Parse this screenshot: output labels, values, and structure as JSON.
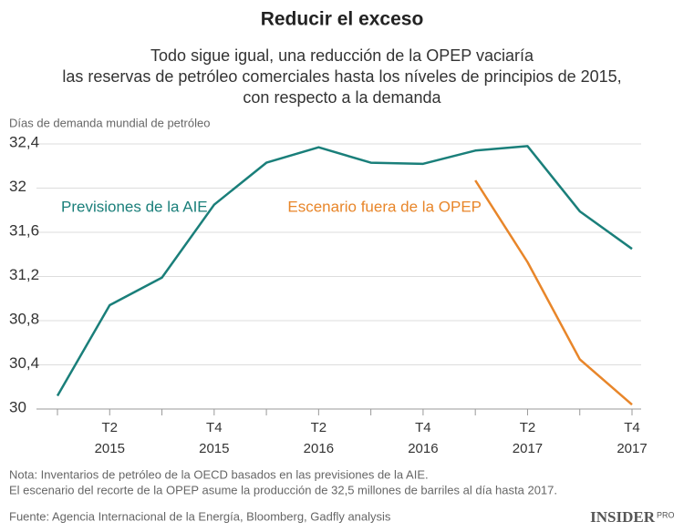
{
  "chart_data": {
    "type": "line",
    "title": "Reducir el exceso",
    "subtitle": [
      "Todo sigue igual, una reducción de la OPEP vaciaría",
      "las reservas de petróleo comerciales hasta los níveles de principios de 2015,",
      "con respecto a la demanda"
    ],
    "ylabel": "Días de demanda mundial de petróleo",
    "categories": [
      null,
      "T2\n2015",
      null,
      "T4\n2015",
      null,
      "T2\n2016",
      null,
      "T4\n2016",
      null,
      "T2\n2017",
      null,
      "T4\n2017"
    ],
    "series": [
      {
        "name": "Previsiones de la AIE",
        "color": "#1a7f7a",
        "values": [
          30.12,
          30.94,
          31.19,
          31.85,
          32.23,
          32.37,
          32.23,
          32.22,
          32.34,
          32.38,
          31.79,
          31.45
        ]
      },
      {
        "name": "Escenario fuera de la OPEP",
        "color": "#e8862a",
        "values": [
          null,
          null,
          null,
          null,
          null,
          null,
          null,
          null,
          32.07,
          31.33,
          30.45,
          30.04
        ]
      }
    ],
    "ylim": [
      30,
      32.4
    ],
    "yticks": [
      30,
      {
        "value": 30.4,
        "label": "30,4"
      },
      {
        "value": 30.8,
        "label": "30,8"
      },
      {
        "value": 31.2,
        "label": "31,2"
      },
      {
        "value": 31.6,
        "label": "31,6"
      },
      32,
      {
        "value": 32.4,
        "label": "32,4"
      }
    ],
    "grid": true,
    "notes": [
      "Nota: Inventarios de petróleo de la OECD basados en las previsiones de la AIE.",
      "El escenario del recorte de la OPEP asume la producción de 32,5 millones de barriles al día hasta 2017."
    ],
    "source": "Fuente: Agencia Internacional de la Energía, Bloomberg, Gadfly analysis",
    "logo": {
      "main": "INSIDER",
      "sup": "PRO"
    }
  }
}
